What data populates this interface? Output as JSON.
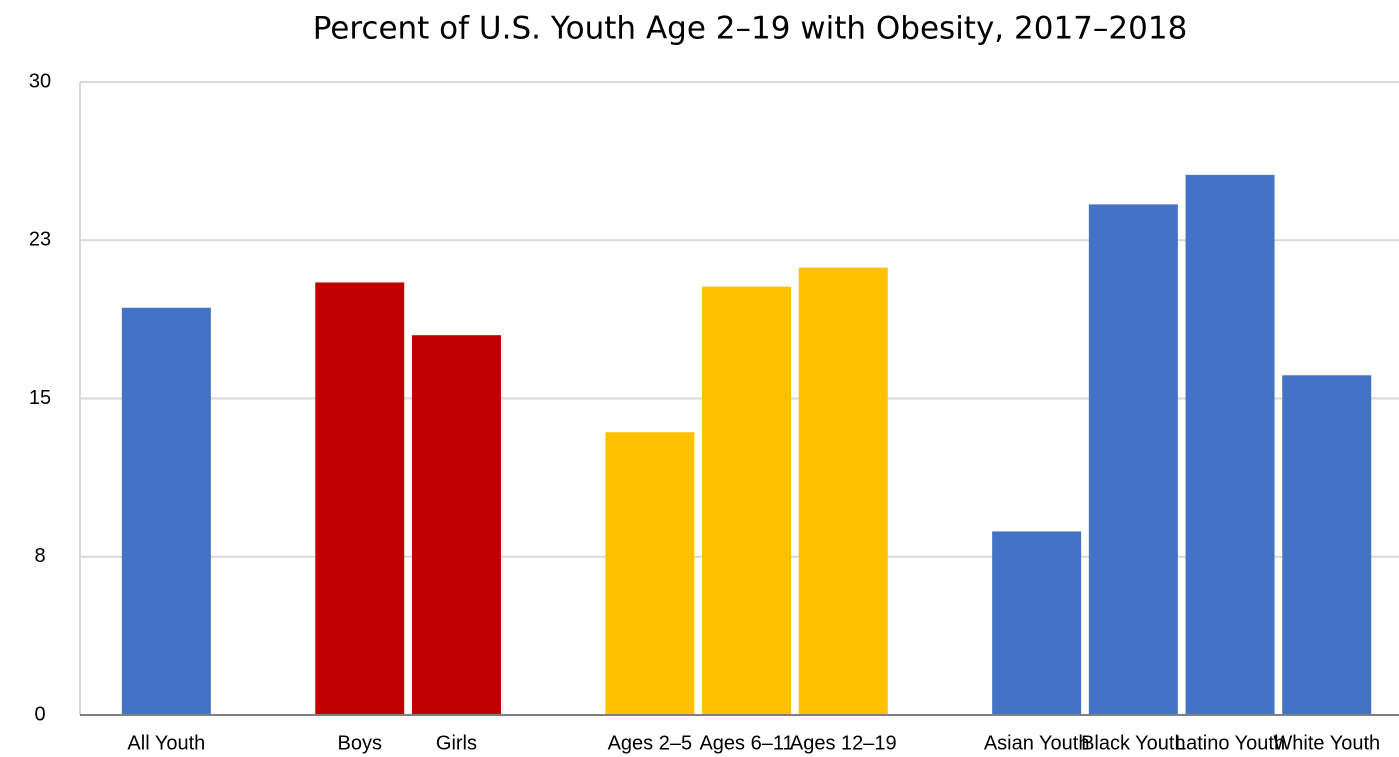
{
  "chart_data": {
    "type": "bar",
    "title": "Percent of U.S. Youth Age 2–19 with Obesity, 2017–2018",
    "categories": [
      "All Youth",
      null,
      "Boys",
      "Girls",
      null,
      "Ages 2–5",
      "Ages 6–11",
      "Ages 12–19",
      null,
      "Asian Youth",
      "Black Youth",
      "Latino Youth",
      "White Youth"
    ],
    "values": [
      19.3,
      null,
      20.5,
      18.0,
      null,
      13.4,
      20.3,
      21.2,
      null,
      8.7,
      24.2,
      25.6,
      16.1
    ],
    "colors": [
      "#4472c4",
      null,
      "#c00000",
      "#c00000",
      null,
      "#ffc000",
      "#ffc000",
      "#ffc000",
      null,
      "#4472c4",
      "#4472c4",
      "#4472c4",
      "#4472c4"
    ],
    "ylim": [
      0,
      30
    ],
    "yticks": [
      0,
      {
        "value": 7.5,
        "label": "8"
      },
      15,
      {
        "value": 22.5,
        "label": "23"
      },
      30
    ],
    "grid": true
  }
}
